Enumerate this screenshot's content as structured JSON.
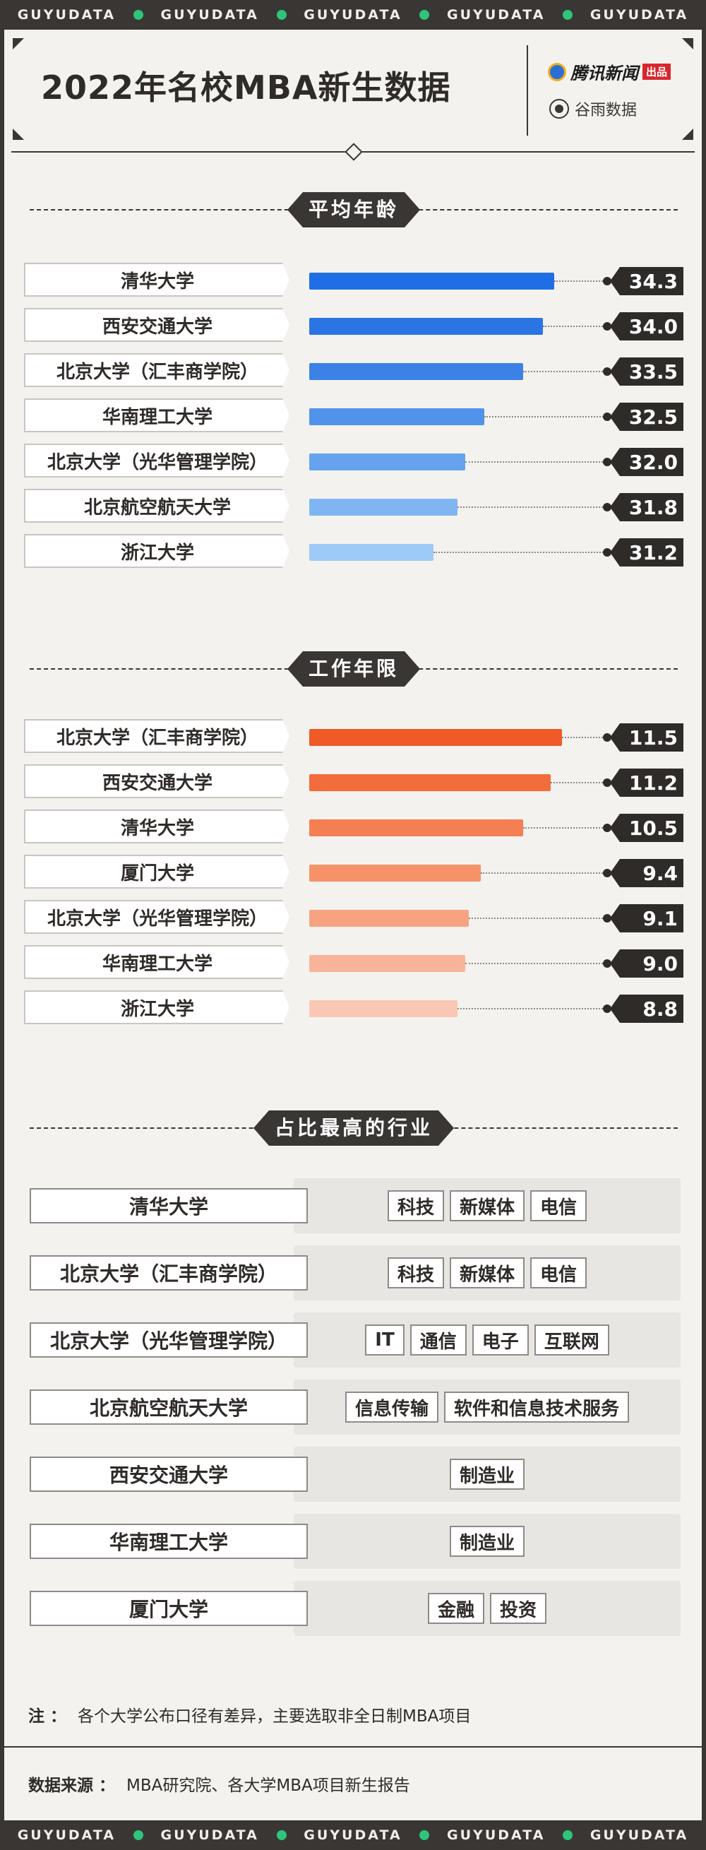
{
  "ticker": {
    "words": [
      "GUYUDATA",
      "GUYUDATA",
      "GUYUDATA",
      "GUYUDATA",
      "GUYUDATA"
    ]
  },
  "header": {
    "title": "2022年名校MBA新生数据",
    "brand1_name": "腾讯新闻",
    "brand1_tag": "出品",
    "brand2_name": "谷雨数据"
  },
  "colors": {
    "age_bars": [
      "#1f6ee6",
      "#2a74e4",
      "#3c82e6",
      "#5193ea",
      "#66a3ee",
      "#7fb6f2",
      "#9dcaf6"
    ],
    "work_bars": [
      "#f05a28",
      "#f36c3c",
      "#f47f52",
      "#f69268",
      "#f7a382",
      "#f8b49a",
      "#f9c7b3"
    ]
  },
  "chart_data": [
    {
      "type": "bar",
      "title": "平均年龄",
      "categories": [
        "清华大学",
        "西安交通大学",
        "北京大学（汇丰商学院）",
        "华南理工大学",
        "北京大学（光华管理学院）",
        "北京航空航天大学",
        "浙江大学"
      ],
      "values": [
        34.3,
        34.0,
        33.5,
        32.5,
        32.0,
        31.8,
        31.2
      ],
      "labels": [
        "34.3",
        "34.0",
        "33.5",
        "32.5",
        "32.0",
        "31.8",
        "31.2"
      ],
      "orientation": "horizontal"
    },
    {
      "type": "bar",
      "title": "工作年限",
      "categories": [
        "北京大学（汇丰商学院）",
        "西安交通大学",
        "清华大学",
        "厦门大学",
        "北京大学（光华管理学院）",
        "华南理工大学",
        "浙江大学"
      ],
      "values": [
        11.5,
        11.2,
        10.5,
        9.4,
        9.1,
        9.0,
        8.8
      ],
      "labels": [
        "11.5",
        "11.2",
        "10.5",
        "9.4",
        "9.1",
        "9.0",
        "8.8"
      ],
      "orientation": "horizontal"
    },
    {
      "type": "table",
      "title": "占比最高的行业",
      "rows": [
        {
          "school": "清华大学",
          "industries": [
            "科技",
            "新媒体",
            "电信"
          ]
        },
        {
          "school": "北京大学（汇丰商学院）",
          "industries": [
            "科技",
            "新媒体",
            "电信"
          ]
        },
        {
          "school": "北京大学（光华管理学院）",
          "industries": [
            "IT",
            "通信",
            "电子",
            "互联网"
          ]
        },
        {
          "school": "北京航空航天大学",
          "industries": [
            "信息传输",
            "软件和信息技术服务"
          ]
        },
        {
          "school": "西安交通大学",
          "industries": [
            "制造业"
          ]
        },
        {
          "school": "华南理工大学",
          "industries": [
            "制造业"
          ]
        },
        {
          "school": "厦门大学",
          "industries": [
            "金融",
            "投资"
          ]
        }
      ]
    }
  ],
  "note": {
    "label": "注 ：",
    "text": "各个大学公布口径有差异，主要选取非全日制MBA项目"
  },
  "source": {
    "label": "数据来源 ：",
    "text": "MBA研究院、各大学MBA项目新生报告"
  }
}
